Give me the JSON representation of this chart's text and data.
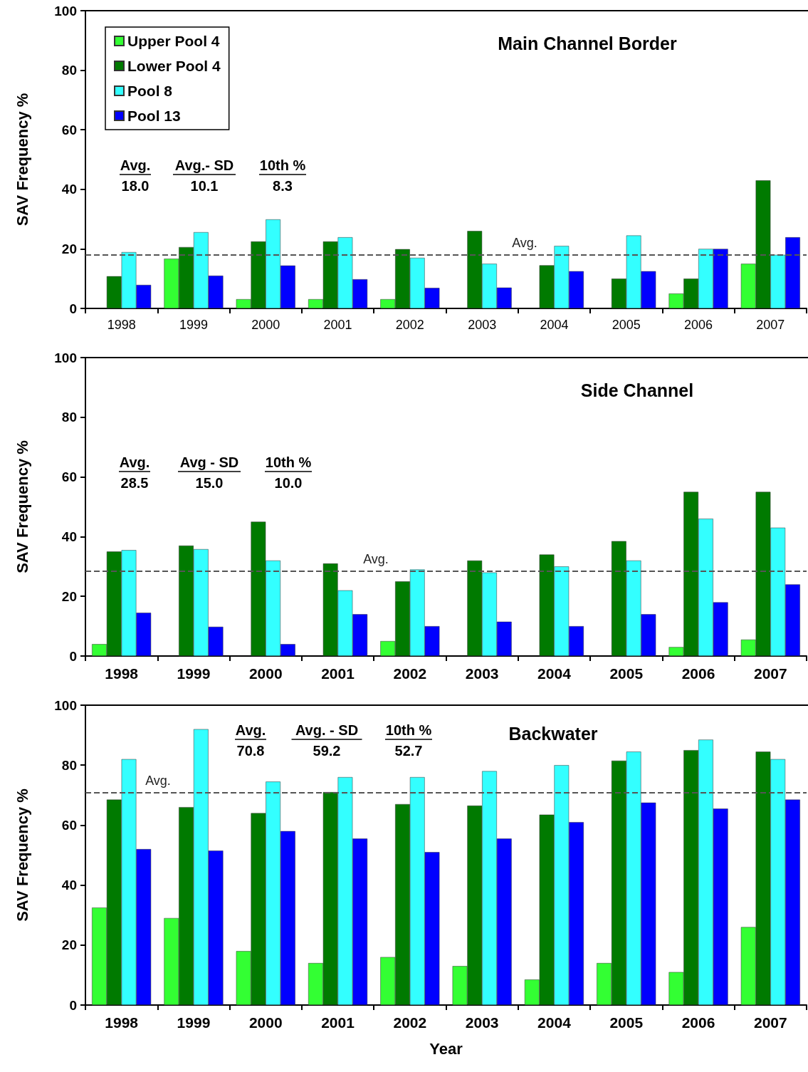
{
  "chart_data": [
    {
      "type": "bar",
      "title": "Main Channel Border",
      "ylabel": "SAV Frequency %",
      "categories": [
        "1998",
        "1999",
        "2000",
        "2001",
        "2002",
        "2003",
        "2004",
        "2005",
        "2006",
        "2007"
      ],
      "series": [
        {
          "name": "Upper Pool 4",
          "color": "#33ff33",
          "values": [
            null,
            16.7,
            3.1,
            3.1,
            3.1,
            null,
            null,
            null,
            5,
            15
          ]
        },
        {
          "name": "Lower Pool 4",
          "color": "#007a00",
          "values": [
            10.8,
            20.6,
            22.5,
            22.5,
            19.9,
            26,
            14.5,
            10,
            10,
            43
          ]
        },
        {
          "name": "Pool 8",
          "color": "#33ffff",
          "values": [
            18.9,
            25.6,
            29.9,
            23.9,
            17,
            15,
            21,
            24.5,
            20,
            18
          ]
        },
        {
          "name": "Pool 13",
          "color": "#0000ff",
          "values": [
            7.9,
            11,
            14.4,
            9.8,
            6.9,
            7,
            12.5,
            12.5,
            20,
            23.9
          ]
        }
      ],
      "ylim": [
        0,
        100
      ],
      "yticks": [
        0,
        20,
        40,
        60,
        80,
        100
      ],
      "grid": false,
      "legend": "top left",
      "ref_lines": [
        {
          "axis": "y",
          "value": 18,
          "label": "Avg.",
          "color": "#555555",
          "line_style": "dashed"
        }
      ],
      "annotations": [
        "Avg.",
        "18.0",
        "Avg.- SD",
        "10.1",
        "10th %",
        "8.3"
      ]
    },
    {
      "type": "bar",
      "title": "Side Channel",
      "ylabel": "SAV Frequency %",
      "categories": [
        "1998",
        "1999",
        "2000",
        "2001",
        "2002",
        "2003",
        "2004",
        "2005",
        "2006",
        "2007"
      ],
      "series": [
        {
          "color": "#33ff33",
          "values": [
            4,
            null,
            null,
            null,
            5,
            null,
            null,
            null,
            3,
            5.5
          ]
        },
        {
          "color": "#007a00",
          "values": [
            35,
            37,
            45,
            31,
            25,
            32,
            34,
            38.5,
            55,
            55
          ]
        },
        {
          "color": "#33ffff",
          "values": [
            35.5,
            35.8,
            32,
            22,
            29,
            28,
            30,
            32,
            46,
            43
          ]
        },
        {
          "color": "#0000ff",
          "values": [
            14.5,
            9.8,
            4,
            14,
            10,
            11.5,
            10,
            14,
            18,
            24
          ]
        }
      ],
      "ylim": [
        0,
        100
      ],
      "yticks": [
        0,
        20,
        40,
        60,
        80,
        100
      ],
      "grid": false,
      "legend": false,
      "ref_lines": [
        {
          "axis": "y",
          "value": 28.5,
          "label": "Avg.",
          "color": "#555555",
          "line_style": "dashed"
        }
      ],
      "annotations": [
        "Avg.",
        "28.5",
        "Avg - SD",
        "15.0",
        "10th %",
        "10.0"
      ]
    },
    {
      "type": "bar",
      "title": "Backwater",
      "ylabel": "SAV Frequency %",
      "xlabel": "Year",
      "categories": [
        "1998",
        "1999",
        "2000",
        "2001",
        "2002",
        "2003",
        "2004",
        "2005",
        "2006",
        "2007"
      ],
      "series": [
        {
          "color": "#33ff33",
          "values": [
            32.5,
            29,
            18,
            14,
            16,
            13,
            8.5,
            14,
            11,
            26
          ]
        },
        {
          "color": "#007a00",
          "values": [
            68.5,
            66,
            64,
            71,
            67,
            66.5,
            63.5,
            81.5,
            85,
            84.5
          ]
        },
        {
          "color": "#33ffff",
          "values": [
            82,
            92,
            74.5,
            76,
            76,
            78,
            80,
            84.5,
            88.5,
            82
          ]
        },
        {
          "color": "#0000ff",
          "values": [
            52,
            51.5,
            58,
            55.5,
            51,
            55.5,
            61,
            67.5,
            65.5,
            68.5
          ]
        }
      ],
      "ylim": [
        0,
        100
      ],
      "yticks": [
        0,
        20,
        40,
        60,
        80,
        100
      ],
      "grid": false,
      "legend": false,
      "ref_lines": [
        {
          "axis": "y",
          "value": 70.8,
          "label": "Avg.",
          "color": "#555555",
          "line_style": "dashed"
        }
      ],
      "annotations": [
        "Avg.",
        "70.8",
        "Avg. - SD",
        "59.2",
        "10th %",
        "52.7"
      ]
    }
  ]
}
